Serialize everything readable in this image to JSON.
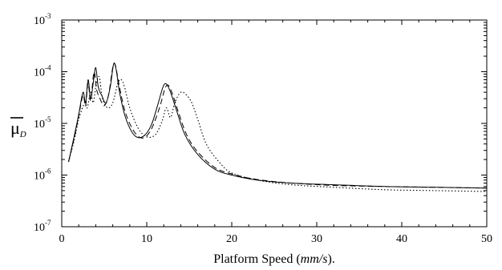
{
  "chart_data": {
    "type": "line",
    "xlabel": {
      "prefix": "Platform Speed (",
      "unit": "mm/s",
      "suffix": ")."
    },
    "ylabel": {
      "main": "μ",
      "sub": "D"
    },
    "xlim": [
      0,
      50
    ],
    "ylim": [
      1e-07,
      0.001
    ],
    "yscale": "log",
    "grid": false,
    "legend": "none",
    "x_ticks": [
      0,
      10,
      20,
      30,
      40,
      50
    ],
    "y_ticks": [
      {
        "value": 1e-07,
        "base": "10",
        "exp": "-7"
      },
      {
        "value": 1e-06,
        "base": "10",
        "exp": "-6"
      },
      {
        "value": 1e-05,
        "base": "10",
        "exp": "-5"
      },
      {
        "value": 0.0001,
        "base": "10",
        "exp": "-4"
      },
      {
        "value": 0.001,
        "base": "10",
        "exp": "-3"
      }
    ],
    "series": [
      {
        "style": "solid",
        "x": [
          0.8,
          1.5,
          2.0,
          2.5,
          2.8,
          3.1,
          3.4,
          3.7,
          4.0,
          4.3,
          4.7,
          5.2,
          5.7,
          6.1,
          6.4,
          6.8,
          7.5,
          8.5,
          9.5,
          10.5,
          11.3,
          11.9,
          12.3,
          12.8,
          13.5,
          14.5,
          16.0,
          18.0,
          20.0,
          23.0,
          27.0,
          32.0,
          38.0,
          44.0,
          50.0
        ],
        "y": [
          1.8e-06,
          6e-06,
          1.5e-05,
          4e-05,
          2.5e-05,
          7e-05,
          3e-05,
          6e-05,
          0.00012,
          5e-05,
          3.5e-05,
          2.5e-05,
          5e-05,
          0.00014,
          0.00011,
          4e-05,
          1.3e-05,
          6e-06,
          5.5e-06,
          9e-06,
          2.3e-05,
          5e-05,
          5.8e-05,
          4e-05,
          1.8e-05,
          6e-06,
          2.5e-06,
          1.3e-06,
          1e-06,
          8e-07,
          7e-07,
          6.5e-07,
          6e-07,
          5.8e-07,
          5.6e-07
        ]
      },
      {
        "style": "dashed",
        "x": [
          0.8,
          1.5,
          2.0,
          2.5,
          2.8,
          3.1,
          3.4,
          3.8,
          4.1,
          4.5,
          5.0,
          5.5,
          6.0,
          6.3,
          6.8,
          7.5,
          8.5,
          9.5,
          10.5,
          11.5,
          12.1,
          12.5,
          13.0,
          13.7,
          14.7,
          16.0,
          18.0,
          20.0,
          23.0,
          27.0,
          32.0,
          38.0,
          44.0,
          50.0
        ],
        "y": [
          1.8e-06,
          5.5e-06,
          1.4e-05,
          3.5e-05,
          2.2e-05,
          6e-05,
          2.8e-05,
          0.0001,
          4.5e-05,
          3e-05,
          2.2e-05,
          3.5e-05,
          0.00012,
          0.000135,
          5e-05,
          1.6e-05,
          7e-06,
          5.2e-06,
          7.5e-06,
          2e-05,
          4.5e-05,
          5.5e-05,
          3.8e-05,
          1.7e-05,
          6e-06,
          2.8e-06,
          1.4e-06,
          1.05e-06,
          8.2e-07,
          7e-07,
          6.3e-07,
          6e-07,
          5.8e-07,
          5.6e-07
        ]
      },
      {
        "style": "dotted",
        "x": [
          0.8,
          1.5,
          2.0,
          2.7,
          3.0,
          3.4,
          3.7,
          4.0,
          4.4,
          4.8,
          5.4,
          6.0,
          6.6,
          7.0,
          7.4,
          8.0,
          9.0,
          10.0,
          11.0,
          11.8,
          12.3,
          12.8,
          13.3,
          14.0,
          14.7,
          15.3,
          16.0,
          17.0,
          18.5,
          20.0,
          23.0,
          27.0,
          32.0,
          38.0,
          44.0,
          50.0
        ],
        "y": [
          1.8e-06,
          5e-06,
          1.2e-05,
          2.5e-05,
          2e-05,
          4e-05,
          2.5e-05,
          5e-05,
          8e-05,
          3e-05,
          2e-05,
          2.5e-05,
          6e-05,
          7e-05,
          5e-05,
          2e-05,
          8e-06,
          5.5e-06,
          6e-06,
          1.1e-05,
          2e-05,
          1.3e-05,
          2.5e-05,
          4e-05,
          3.5e-05,
          2.5e-05,
          1.2e-05,
          4e-06,
          1.8e-06,
          1.1e-06,
          8e-07,
          6.5e-07,
          5.8e-07,
          5.2e-07,
          5e-07,
          4.8e-07
        ]
      }
    ]
  }
}
